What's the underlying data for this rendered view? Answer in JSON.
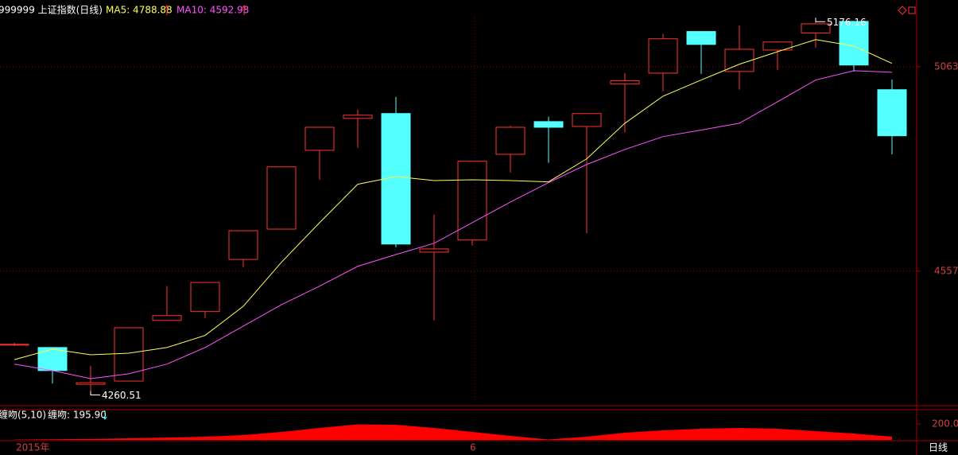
{
  "chart_data": [
    {
      "type": "candlestick",
      "title": "999999 上证指数(日线)",
      "categories": [
        "2015年",
        null,
        null,
        null,
        null,
        null,
        null,
        null,
        null,
        null,
        null,
        null,
        "6",
        null,
        null,
        null,
        null,
        null,
        null,
        null,
        null,
        null,
        null,
        null
      ],
      "candles": [
        {
          "open": 4374,
          "high": 4380,
          "low": 4372,
          "close": 4376
        },
        {
          "open": 4368,
          "high": 4368,
          "low": 4279,
          "close": 4311
        },
        {
          "open": 4277,
          "high": 4323,
          "low": 4260.51,
          "close": 4281
        },
        {
          "open": 4285,
          "high": 4417,
          "low": 4285,
          "close": 4417
        },
        {
          "open": 4435,
          "high": 4520,
          "low": 4435,
          "close": 4447
        },
        {
          "open": 4457,
          "high": 4529,
          "low": 4441,
          "close": 4529
        },
        {
          "open": 4586,
          "high": 4657,
          "low": 4567,
          "close": 4657
        },
        {
          "open": 4661,
          "high": 4815,
          "low": 4661,
          "close": 4815
        },
        {
          "open": 4856,
          "high": 4913,
          "low": 4783,
          "close": 4913
        },
        {
          "open": 4935,
          "high": 4957,
          "low": 4862,
          "close": 4943
        },
        {
          "open": 4947,
          "high": 4988,
          "low": 4616,
          "close": 4624
        },
        {
          "open": 4604,
          "high": 4697,
          "low": 4435,
          "close": 4612
        },
        {
          "open": 4634,
          "high": 4829,
          "low": 4620,
          "close": 4829
        },
        {
          "open": 4846,
          "high": 4917,
          "low": 4801,
          "close": 4913
        },
        {
          "open": 4927,
          "high": 4939,
          "low": 4825,
          "close": 4913
        },
        {
          "open": 4915,
          "high": 4947,
          "low": 4651,
          "close": 4947
        },
        {
          "open": 5020,
          "high": 5047,
          "low": 4900,
          "close": 5028
        },
        {
          "open": 5047,
          "high": 5144,
          "low": 5002,
          "close": 5132
        },
        {
          "open": 5150,
          "high": 5150,
          "low": 5045,
          "close": 5118
        },
        {
          "open": 5051,
          "high": 5165,
          "low": 5006,
          "close": 5106
        },
        {
          "open": 5104,
          "high": 5126,
          "low": 5055,
          "close": 5124
        },
        {
          "open": 5146,
          "high": 5176.16,
          "low": 5110,
          "close": 5169
        },
        {
          "open": 5175,
          "high": 5175,
          "low": 5051,
          "close": 5067
        },
        {
          "open": 5006,
          "high": 5031,
          "low": 4846,
          "close": 4892
        }
      ],
      "up_color": "#ff3232",
      "down_color": "#54ffff",
      "series": [
        {
          "name": "MA5: 4788.88",
          "color": "#ffff54",
          "values": [
            4338,
            4364,
            4350,
            4354,
            4368,
            4398,
            4470,
            4579,
            4677,
            4772,
            4791,
            4781,
            4783,
            4781,
            4778,
            4835,
            4923,
            4990,
            5030,
            5069,
            5100,
            5130,
            5114,
            5071
          ]
        },
        {
          "name": "MA10: 4592.98",
          "color": "#ff54ff",
          "values": [
            4327,
            4311,
            4291,
            4303,
            4327,
            4368,
            4421,
            4474,
            4520,
            4569,
            4598,
            4626,
            4677,
            4728,
            4776,
            4821,
            4858,
            4890,
            4906,
            4923,
            4976,
            5030,
            5053,
            5049
          ]
        }
      ],
      "ylim": [
        4228,
        5224
      ],
      "yticks": [
        4557,
        5063
      ],
      "grid": true
    },
    {
      "type": "area",
      "title": "缠吻(5,10)",
      "series": [
        {
          "name": "缠吻: 195.90",
          "color": "#ff0000",
          "values": [
            4,
            8,
            12,
            20,
            30,
            40,
            60,
            100,
            150,
            195,
            190,
            150,
            100,
            50,
            5,
            40,
            90,
            120,
            140,
            150,
            140,
            110,
            80,
            40
          ]
        }
      ],
      "ylim": [
        0,
        380
      ],
      "yticks": [
        {
          "value": 200,
          "label": "200.0"
        }
      ]
    }
  ],
  "period_label": "日线"
}
